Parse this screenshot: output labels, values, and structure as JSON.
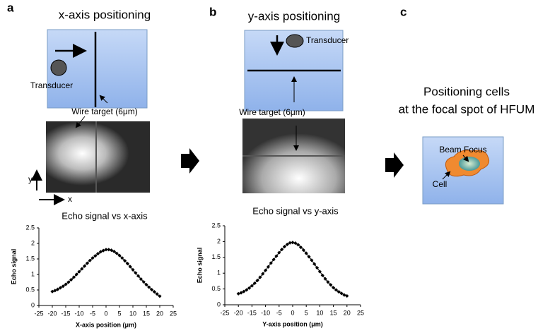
{
  "panels": {
    "a": {
      "label": "a",
      "title": "x-axis positioning",
      "transducer": "Transducer",
      "wire": "Wire target (6μm)",
      "axis_y": "y",
      "axis_x": "x"
    },
    "b": {
      "label": "b",
      "title": "y-axis positioning",
      "transducer": "Transducer",
      "wire": "Wire target (6μm)"
    },
    "c": {
      "label": "c",
      "title_lines": [
        "Positioning cells",
        "at the focal spot of HFUM"
      ],
      "beam": "Beam Focus",
      "cell": "Cell"
    }
  },
  "chart_data": [
    {
      "type": "line",
      "title": "Echo signal vs x-axis",
      "x_label": "X-axis position (μm)",
      "y_label": "Echo signal",
      "x": [
        -20,
        -19,
        -18,
        -17,
        -16,
        -15,
        -14,
        -13,
        -12,
        -11,
        -10,
        -9,
        -8,
        -7,
        -6,
        -5,
        -4,
        -3,
        -2,
        -1,
        0,
        1,
        2,
        3,
        4,
        5,
        6,
        7,
        8,
        9,
        10,
        11,
        12,
        13,
        14,
        15,
        16,
        17,
        18,
        19,
        20
      ],
      "values": [
        0.45,
        0.48,
        0.52,
        0.57,
        0.62,
        0.68,
        0.75,
        0.83,
        0.91,
        1.0,
        1.09,
        1.18,
        1.27,
        1.36,
        1.45,
        1.53,
        1.6,
        1.67,
        1.73,
        1.77,
        1.8,
        1.8,
        1.78,
        1.74,
        1.68,
        1.61,
        1.53,
        1.44,
        1.35,
        1.25,
        1.15,
        1.05,
        0.95,
        0.85,
        0.76,
        0.67,
        0.59,
        0.51,
        0.44,
        0.37,
        0.3
      ],
      "color": "#000000",
      "xlim": [
        -25,
        25
      ],
      "xticks": [
        -25,
        -20,
        -15,
        -10,
        -5,
        0,
        5,
        10,
        15,
        20,
        25
      ],
      "ylim": [
        0,
        2.5
      ],
      "yticks": [
        0,
        0.5,
        1,
        1.5,
        2,
        2.5
      ]
    },
    {
      "type": "line",
      "title": "Echo signal vs y-axis",
      "x_label": "Y-axis position (μm)",
      "y_label": "Echo signal",
      "x": [
        -20,
        -19,
        -18,
        -17,
        -16,
        -15,
        -14,
        -13,
        -12,
        -11,
        -10,
        -9,
        -8,
        -7,
        -6,
        -5,
        -4,
        -3,
        -2,
        -1,
        0,
        1,
        2,
        3,
        4,
        5,
        6,
        7,
        8,
        9,
        10,
        11,
        12,
        13,
        14,
        15,
        16,
        17,
        18,
        19,
        20
      ],
      "values": [
        0.35,
        0.38,
        0.42,
        0.47,
        0.53,
        0.6,
        0.68,
        0.77,
        0.87,
        0.98,
        1.09,
        1.2,
        1.32,
        1.43,
        1.54,
        1.65,
        1.75,
        1.84,
        1.91,
        1.96,
        1.97,
        1.95,
        1.9,
        1.82,
        1.73,
        1.63,
        1.52,
        1.41,
        1.29,
        1.17,
        1.05,
        0.93,
        0.82,
        0.72,
        0.63,
        0.54,
        0.47,
        0.41,
        0.36,
        0.31,
        0.28
      ],
      "color": "#000000",
      "xlim": [
        -25,
        25
      ],
      "xticks": [
        -25,
        -20,
        -15,
        -10,
        -5,
        0,
        5,
        10,
        15,
        20,
        25
      ],
      "ylim": [
        0,
        2.5
      ],
      "yticks": [
        0,
        0.5,
        1,
        1.5,
        2,
        2.5
      ]
    }
  ]
}
